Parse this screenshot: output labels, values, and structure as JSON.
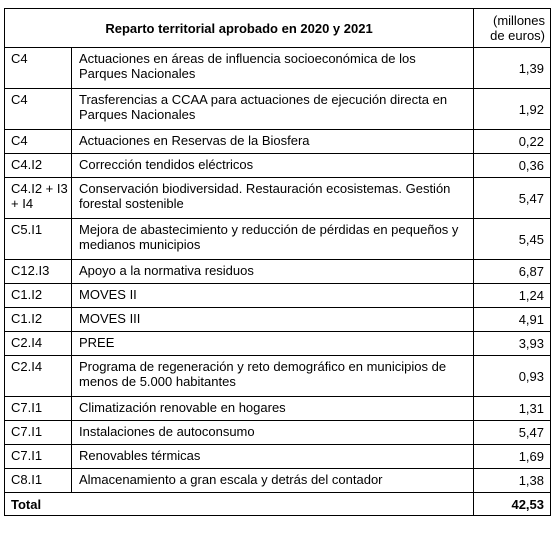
{
  "table": {
    "title": "Reparto territorial aprobado en 2020 y 2021",
    "units_label": "(millones de euros)",
    "rows": [
      {
        "code": "C4",
        "description": "Actuaciones en áreas de influencia socioeconómica de los Parques Nacionales",
        "value": "1,39"
      },
      {
        "code": "C4",
        "description": "Trasferencias a CCAA para actuaciones de ejecución directa en Parques Nacionales",
        "value": "1,92"
      },
      {
        "code": "C4",
        "description": "Actuaciones en Reservas de la Biosfera",
        "value": "0,22"
      },
      {
        "code": "C4.I2",
        "description": "Corrección tendidos eléctricos",
        "value": "0,36"
      },
      {
        "code": "C4.I2 + I3 + I4",
        "description": "Conservación biodiversidad. Restauración ecosistemas. Gestión forestal sostenible",
        "value": "5,47"
      },
      {
        "code": "C5.I1",
        "description": "Mejora de abastecimiento y reducción de pérdidas en pequeños y medianos municipios",
        "value": "5,45"
      },
      {
        "code": "C12.I3",
        "description": "Apoyo a la normativa residuos",
        "value": "6,87"
      },
      {
        "code": "C1.I2",
        "description": "MOVES II",
        "value": "1,24"
      },
      {
        "code": "C1.I2",
        "description": "MOVES III",
        "value": "4,91"
      },
      {
        "code": "C2.I4",
        "description": "PREE",
        "value": "3,93"
      },
      {
        "code": "C2.I4",
        "description": "Programa de regeneración y reto demográfico en municipios de menos de 5.000 habitantes",
        "value": "0,93"
      },
      {
        "code": "C7.I1",
        "description": "Climatización renovable en hogares",
        "value": "1,31"
      },
      {
        "code": "C7.I1",
        "description": "Instalaciones de autoconsumo",
        "value": "5,47"
      },
      {
        "code": "C7.I1",
        "description": "Renovables térmicas",
        "value": "1,69"
      },
      {
        "code": "C8.I1",
        "description": "Almacenamiento a gran escala y detrás del contador",
        "value": "1,38"
      }
    ],
    "total": {
      "label": "Total",
      "value": "42,53"
    }
  }
}
